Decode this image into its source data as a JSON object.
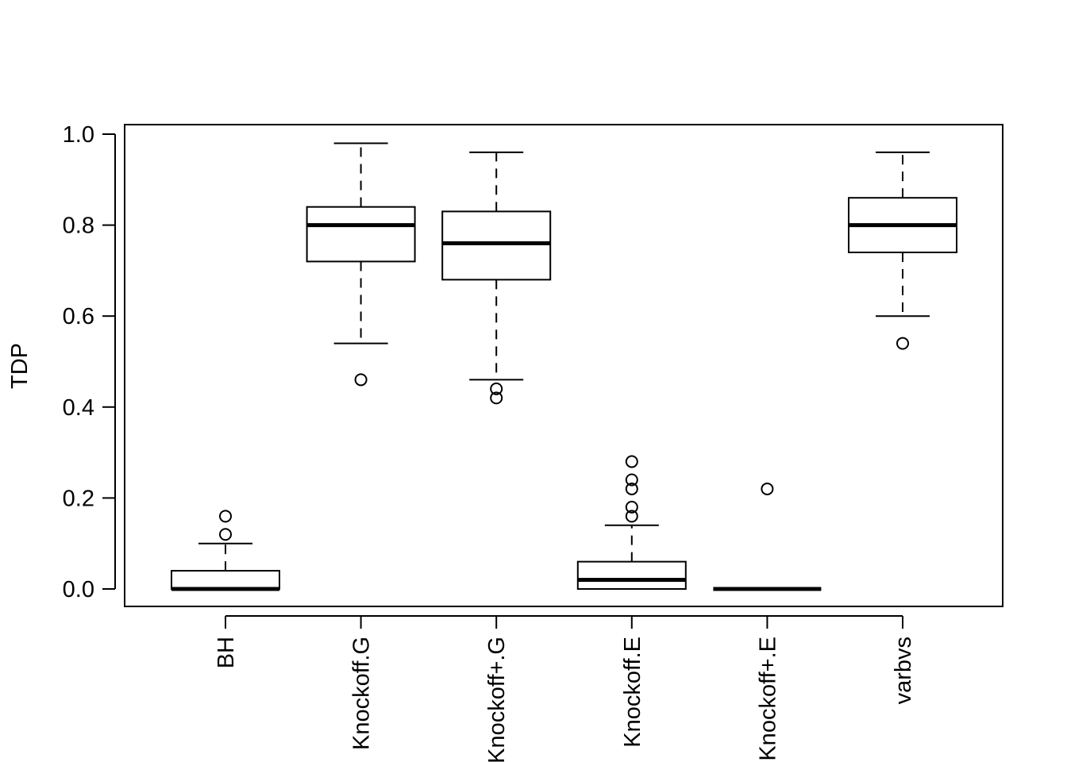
{
  "chart_data": {
    "type": "boxplot",
    "title": "",
    "xlabel": "",
    "ylabel": "TDP",
    "ylim": [
      -0.04,
      1.02
    ],
    "yticks": [
      0.0,
      0.2,
      0.4,
      0.6,
      0.8,
      1.0
    ],
    "ytick_labels": [
      "0.0",
      "0.2",
      "0.4",
      "0.6",
      "0.8",
      "1.0"
    ],
    "categories": [
      "BH",
      "Knockoff.G",
      "Knockoff+.G",
      "Knockoff.E",
      "Knockoff+.E",
      "varbvs"
    ],
    "boxes": [
      {
        "name": "BH",
        "whisker_low": 0.0,
        "q1": 0.0,
        "median": 0.0,
        "q3": 0.04,
        "whisker_high": 0.1,
        "outliers": [
          0.12,
          0.16
        ]
      },
      {
        "name": "Knockoff.G",
        "whisker_low": 0.54,
        "q1": 0.72,
        "median": 0.8,
        "q3": 0.84,
        "whisker_high": 0.98,
        "outliers": [
          0.46
        ]
      },
      {
        "name": "Knockoff+.G",
        "whisker_low": 0.46,
        "q1": 0.68,
        "median": 0.76,
        "q3": 0.83,
        "whisker_high": 0.96,
        "outliers": [
          0.42,
          0.44
        ]
      },
      {
        "name": "Knockoff.E",
        "whisker_low": 0.0,
        "q1": 0.0,
        "median": 0.02,
        "q3": 0.06,
        "whisker_high": 0.14,
        "outliers": [
          0.16,
          0.18,
          0.22,
          0.24,
          0.28
        ]
      },
      {
        "name": "Knockoff+.E",
        "whisker_low": 0.0,
        "q1": 0.0,
        "median": 0.0,
        "q3": 0.0,
        "whisker_high": 0.0,
        "outliers": [
          0.22
        ]
      },
      {
        "name": "varbvs",
        "whisker_low": 0.6,
        "q1": 0.74,
        "median": 0.8,
        "q3": 0.86,
        "whisker_high": 0.96,
        "outliers": [
          0.54
        ]
      }
    ],
    "grid": false,
    "legend": "none"
  }
}
